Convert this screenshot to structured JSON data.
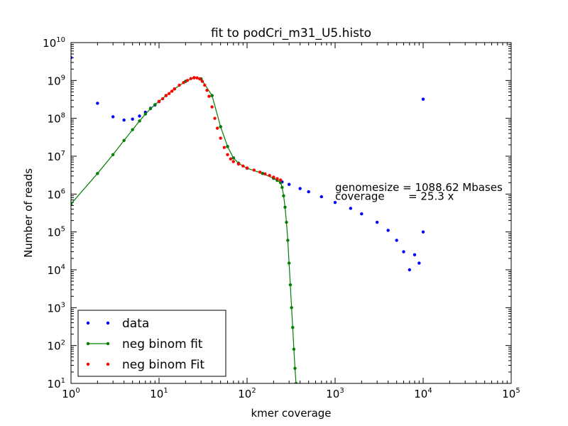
{
  "chart_data": {
    "type": "scatter",
    "title": "fit to podCri_m31_U5.histo",
    "xlabel": "kmer coverage",
    "ylabel": "Number of reads",
    "xscale": "log",
    "yscale": "log",
    "xlim": [
      1,
      100000
    ],
    "ylim": [
      10,
      10000000000
    ],
    "x_tick_labels": [
      {
        "value": 1,
        "base": "10",
        "exp": "0"
      },
      {
        "value": 10,
        "base": "10",
        "exp": "1"
      },
      {
        "value": 100,
        "base": "10",
        "exp": "2"
      },
      {
        "value": 1000,
        "base": "10",
        "exp": "3"
      },
      {
        "value": 10000,
        "base": "10",
        "exp": "4"
      },
      {
        "value": 100000,
        "base": "10",
        "exp": "5"
      }
    ],
    "y_tick_labels": [
      {
        "value": 10,
        "base": "10",
        "exp": "1"
      },
      {
        "value": 100,
        "base": "10",
        "exp": "2"
      },
      {
        "value": 1000,
        "base": "10",
        "exp": "3"
      },
      {
        "value": 10000,
        "base": "10",
        "exp": "4"
      },
      {
        "value": 100000,
        "base": "10",
        "exp": "5"
      },
      {
        "value": 1000000,
        "base": "10",
        "exp": "6"
      },
      {
        "value": 10000000,
        "base": "10",
        "exp": "7"
      },
      {
        "value": 100000000,
        "base": "10",
        "exp": "8"
      },
      {
        "value": 1000000000,
        "base": "10",
        "exp": "9"
      },
      {
        "value": 10000000000,
        "base": "10",
        "exp": "10"
      }
    ],
    "annotations": [
      {
        "text": "genomesize = 1088.62 Mbases",
        "x": 1000,
        "y": 1200000
      },
      {
        "text": "coverage       = 25.3 x",
        "x": 1000,
        "y": 700000
      }
    ],
    "legend": {
      "placement": "lower-left",
      "entries": [
        {
          "label": "data",
          "color": "#0000ff",
          "style": "dots"
        },
        {
          "label": "neg binom fit",
          "color": "#007f00",
          "style": "line-dots"
        },
        {
          "label": "neg binom Fit",
          "color": "#ff0000",
          "style": "dots"
        }
      ]
    },
    "series": [
      {
        "name": "data",
        "color": "#0000ff",
        "style": "dots",
        "x": [
          1,
          2,
          3,
          4,
          5,
          6,
          7,
          8,
          9,
          10,
          12,
          15,
          20,
          25,
          30,
          40,
          50,
          60,
          70,
          80,
          100,
          150,
          200,
          250,
          300,
          400,
          500,
          700,
          1000,
          1500,
          2000,
          3000,
          4000,
          5000,
          6000,
          7000,
          8000,
          9000,
          10000,
          10000
        ],
        "y": [
          4000000000,
          250000000,
          110000000,
          90000000,
          95000000,
          115000000,
          145000000,
          185000000,
          225000000,
          275000000,
          400000000,
          600000000,
          950000000,
          1180000000,
          1100000000,
          400000000,
          60000000,
          18000000,
          9000000,
          6500000,
          4800000,
          3500000,
          2600000,
          2100000,
          1800000,
          1400000,
          1150000,
          850000,
          600000,
          420000,
          300000,
          180000,
          110000,
          60000,
          30000,
          10000,
          25000,
          15000,
          100000,
          320000000
        ]
      },
      {
        "name": "neg binom fit",
        "color": "#007f00",
        "style": "line-dots",
        "x": [
          1,
          2,
          3,
          4,
          5,
          6,
          7,
          8,
          9,
          10,
          12,
          15,
          20,
          25,
          30,
          40,
          50,
          60,
          70,
          80,
          100,
          150,
          200,
          220,
          240,
          250,
          260,
          270,
          280,
          290,
          300,
          310,
          320,
          330,
          340,
          350,
          360
        ],
        "y": [
          550000,
          3500000,
          11000000,
          26000000,
          50000000,
          85000000,
          130000000,
          180000000,
          230000000,
          280000000,
          400000000,
          600000000,
          950000000,
          1180000000,
          1100000000,
          400000000,
          60000000,
          18000000,
          9000000,
          6500000,
          4800000,
          3500000,
          2600000,
          2300000,
          2000000,
          1500000,
          900000,
          450000,
          180000,
          60000,
          15000,
          4000,
          1000,
          300,
          80,
          25,
          10
        ]
      },
      {
        "name": "neg binom Fit",
        "color": "#ff0000",
        "style": "dots",
        "x": [
          10,
          11,
          12,
          13,
          14,
          15,
          17,
          19,
          21,
          23,
          25,
          27,
          29,
          31,
          33,
          35,
          37,
          40,
          43,
          46,
          50,
          55,
          60,
          65,
          70,
          80,
          90,
          100,
          120,
          140,
          160,
          180,
          200,
          220,
          240
        ],
        "y": [
          280000000,
          330000000,
          400000000,
          450000000,
          520000000,
          600000000,
          750000000,
          880000000,
          1000000000,
          1120000000,
          1180000000,
          1170000000,
          1100000000,
          950000000,
          750000000,
          550000000,
          380000000,
          200000000,
          100000000,
          55000000,
          30000000,
          17000000,
          11000000,
          8500000,
          7200000,
          6200000,
          5500000,
          4900000,
          4300000,
          3800000,
          3400000,
          3100000,
          2800000,
          2550000,
          2350000
        ]
      }
    ]
  }
}
